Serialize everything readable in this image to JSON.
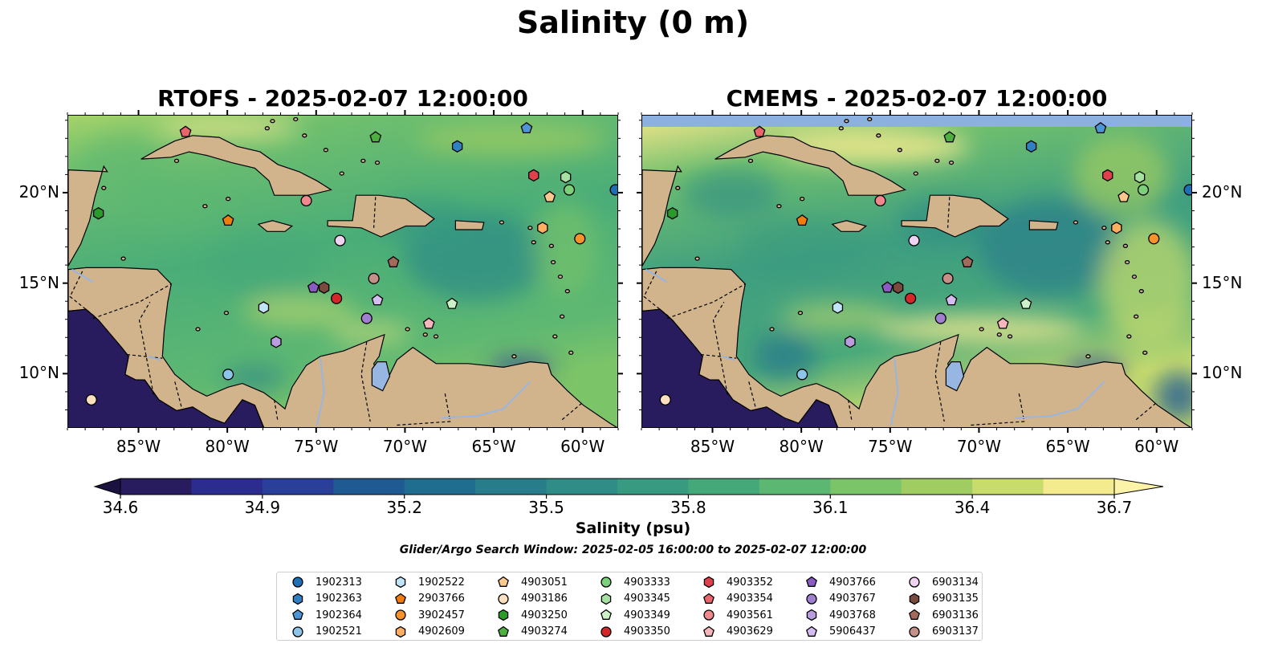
{
  "suptitle": "Salinity (0 m)",
  "panels": [
    {
      "title": "RTOFS - 2025-02-07 12:00:00",
      "style": "rtofs"
    },
    {
      "title": "CMEMS - 2025-02-07 12:00:00",
      "style": "cmems"
    }
  ],
  "axes": {
    "lon_ticks": [
      "85°W",
      "80°W",
      "75°W",
      "70°W",
      "65°W",
      "60°W"
    ],
    "lat_ticks": [
      "20°N",
      "15°N",
      "10°N"
    ],
    "lon_range": [
      -89,
      -58
    ],
    "lat_range": [
      7,
      24.3
    ]
  },
  "colorbar": {
    "ticks": [
      "34.6",
      "34.9",
      "35.2",
      "35.5",
      "35.8",
      "36.1",
      "36.4",
      "36.7"
    ],
    "range": [
      34.6,
      36.7
    ],
    "label": "Salinity (psu)",
    "colors": [
      "#281b5e",
      "#2c2b8f",
      "#293f99",
      "#1f5a93",
      "#1f6e8f",
      "#277e8a",
      "#2f8c86",
      "#389a80",
      "#45a878",
      "#5cb772",
      "#7cc468",
      "#a0cd61",
      "#c8dc6c",
      "#f4ea8e"
    ]
  },
  "window_note": "Glider/Argo Search Window: 2025-02-05 16:00:00 to 2025-02-07 12:00:00",
  "colors": {
    "land": "#d2b48c",
    "lake": "#97b6e1",
    "coast": "#000000"
  },
  "floats": [
    {
      "id": "1902313",
      "marker": "circle",
      "color": "#1f6fb4",
      "lon": -58.2,
      "lat": 20.2
    },
    {
      "id": "1902363",
      "marker": "hexagon",
      "color": "#2f7fc1",
      "lon": -67.1,
      "lat": 22.6
    },
    {
      "id": "1902364",
      "marker": "pentagon",
      "color": "#4c96d7",
      "lon": -63.2,
      "lat": 23.6
    },
    {
      "id": "1902521",
      "marker": "circle",
      "color": "#8cc5ea",
      "lon": -80.0,
      "lat": 10.0
    },
    {
      "id": "1902522",
      "marker": "hexagon",
      "color": "#bfe3f7",
      "lon": -78.0,
      "lat": 13.7
    },
    {
      "id": "2903766",
      "marker": "pentagon",
      "color": "#f07c0e",
      "lon": -80.0,
      "lat": 18.5
    },
    {
      "id": "3902457",
      "marker": "circle",
      "color": "#f8922a",
      "lon": -60.2,
      "lat": 17.5
    },
    {
      "id": "4902609",
      "marker": "hexagon",
      "color": "#fdae61",
      "lon": -62.3,
      "lat": 18.1
    },
    {
      "id": "4903051",
      "marker": "pentagon",
      "color": "#fdc88e",
      "lon": -61.9,
      "lat": 19.8
    },
    {
      "id": "4903186",
      "marker": "circle",
      "color": "#fde0c0",
      "lon": -87.7,
      "lat": 8.6
    },
    {
      "id": "4903250",
      "marker": "hexagon",
      "color": "#2a9a2a",
      "lon": -87.3,
      "lat": 18.9
    },
    {
      "id": "4903274",
      "marker": "pentagon",
      "color": "#4caf3e",
      "lon": -71.7,
      "lat": 23.1
    },
    {
      "id": "4903333",
      "marker": "circle",
      "color": "#7cd07a",
      "lon": -60.8,
      "lat": 20.2
    },
    {
      "id": "4903345",
      "marker": "hexagon",
      "color": "#a5e1a0",
      "lon": -61.0,
      "lat": 20.9
    },
    {
      "id": "4903349",
      "marker": "pentagon",
      "color": "#ccf3c8",
      "lon": -67.4,
      "lat": 13.9
    },
    {
      "id": "4903350",
      "marker": "circle",
      "color": "#d62728",
      "lon": -73.9,
      "lat": 14.2
    },
    {
      "id": "4903352",
      "marker": "hexagon",
      "color": "#e0404a",
      "lon": -62.8,
      "lat": 21.0
    },
    {
      "id": "4903354",
      "marker": "pentagon",
      "color": "#e8656b",
      "lon": -82.4,
      "lat": 23.4
    },
    {
      "id": "4903561",
      "marker": "circle",
      "color": "#f0888e",
      "lon": -75.6,
      "lat": 19.6
    },
    {
      "id": "4903629",
      "marker": "pentagon",
      "color": "#f7b6bb",
      "lon": -68.7,
      "lat": 12.8
    },
    {
      "id": "4903766",
      "marker": "pentagon",
      "color": "#8a5cc2",
      "lon": -75.2,
      "lat": 14.8
    },
    {
      "id": "4903767",
      "marker": "circle",
      "color": "#a07ed0",
      "lon": -72.2,
      "lat": 13.1
    },
    {
      "id": "4903768",
      "marker": "hexagon",
      "color": "#b99ddf",
      "lon": -77.3,
      "lat": 11.8
    },
    {
      "id": "5906437",
      "marker": "pentagon",
      "color": "#d4bdf0",
      "lon": -71.6,
      "lat": 14.1
    },
    {
      "id": "6903134",
      "marker": "circle",
      "color": "#f0d3f2",
      "lon": -73.7,
      "lat": 17.4
    },
    {
      "id": "6903135",
      "marker": "hexagon",
      "color": "#7a4a3e",
      "lon": -74.6,
      "lat": 14.8
    },
    {
      "id": "6903136",
      "marker": "pentagon",
      "color": "#a36a5c",
      "lon": -70.7,
      "lat": 16.2
    },
    {
      "id": "6903137",
      "marker": "circle",
      "color": "#c59186",
      "lon": -71.8,
      "lat": 15.3
    }
  ]
}
